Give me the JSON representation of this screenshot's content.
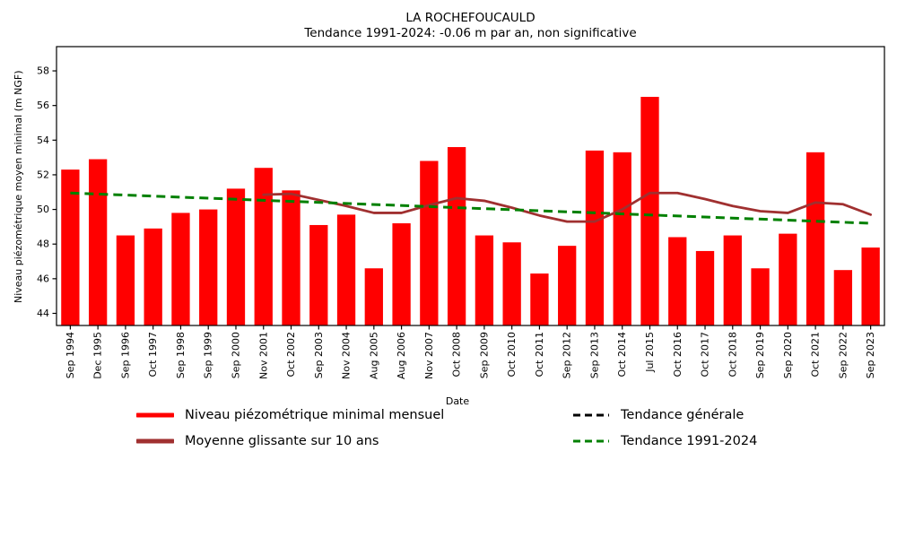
{
  "header": {
    "title": "LA ROCHEFOUCAULD",
    "subtitle": "Tendance 1991-2024: -0.06 m par an, non significative"
  },
  "axes": {
    "ylabel": "Niveau piézométrique moyen minimal (m NGF)",
    "xlabel": "Date"
  },
  "legend": {
    "items": [
      {
        "key": "bars",
        "label": "Niveau piézométrique minimal mensuel",
        "style": "solid",
        "color": "#FF0000"
      },
      {
        "key": "rolling",
        "label": "Moyenne glissante sur 10 ans",
        "style": "solid",
        "color": "#A03030"
      },
      {
        "key": "trend_general",
        "label": "Tendance générale",
        "style": "dashed",
        "color": "#000000"
      },
      {
        "key": "trend_period",
        "label": "Tendance 1991-2024",
        "style": "dashed",
        "color": "#008000"
      }
    ]
  },
  "colors": {
    "bars": "#FF0000",
    "rolling": "#A03030",
    "trend_general": "#000000",
    "trend_period": "#008000",
    "axis": "#000000"
  },
  "chart_data": {
    "type": "bar",
    "title": "LA ROCHEFOUCAULD",
    "subtitle": "Tendance 1991-2024: -0.06 m par an, non significative",
    "xlabel": "Date",
    "ylabel": "Niveau piézométrique moyen minimal (m NGF)",
    "ylim": [
      43.3,
      59.4
    ],
    "yticks": [
      44,
      46,
      48,
      50,
      52,
      54,
      56,
      58
    ],
    "grid": false,
    "legend_position": "below",
    "categories": [
      "Sep 1994",
      "Dec 1995",
      "Sep 1996",
      "Oct 1997",
      "Sep 1998",
      "Sep 1999",
      "Sep 2000",
      "Nov 2001",
      "Oct 2002",
      "Sep 2003",
      "Nov 2004",
      "Aug 2005",
      "Aug 2006",
      "Nov 2007",
      "Oct 2008",
      "Sep 2009",
      "Oct 2010",
      "Oct 2011",
      "Sep 2012",
      "Sep 2013",
      "Oct 2014",
      "Jul 2015",
      "Oct 2016",
      "Oct 2017",
      "Oct 2018",
      "Sep 2019",
      "Sep 2020",
      "Oct 2021",
      "Sep 2022",
      "Sep 2023"
    ],
    "series": [
      {
        "name": "Niveau piézométrique minimal mensuel",
        "type": "bar",
        "color": "#FF0000",
        "values": [
          52.3,
          52.9,
          48.5,
          48.9,
          49.8,
          50.0,
          51.2,
          52.4,
          51.1,
          49.1,
          49.7,
          46.6,
          49.2,
          52.8,
          53.6,
          48.5,
          48.1,
          46.3,
          47.9,
          53.4,
          53.3,
          56.5,
          48.4,
          47.6,
          48.5,
          46.6,
          48.6,
          53.3,
          46.5,
          47.8
        ]
      },
      {
        "name": "Moyenne glissante sur 10 ans",
        "type": "line",
        "color": "#A03030",
        "start_index": 7,
        "values": [
          50.85,
          50.9,
          50.55,
          50.2,
          49.8,
          49.8,
          50.25,
          50.65,
          50.5,
          50.1,
          49.65,
          49.3,
          49.3,
          50.0,
          50.95,
          50.95,
          50.6,
          50.2,
          49.9,
          49.8,
          50.4,
          50.3,
          49.7
        ]
      },
      {
        "name": "Tendance 1991-2024",
        "type": "trendline",
        "color": "#008000",
        "dashed": true,
        "points": [
          {
            "x_index": 0,
            "value": 50.95
          },
          {
            "x_index": 29,
            "value": 49.2
          }
        ]
      }
    ]
  }
}
